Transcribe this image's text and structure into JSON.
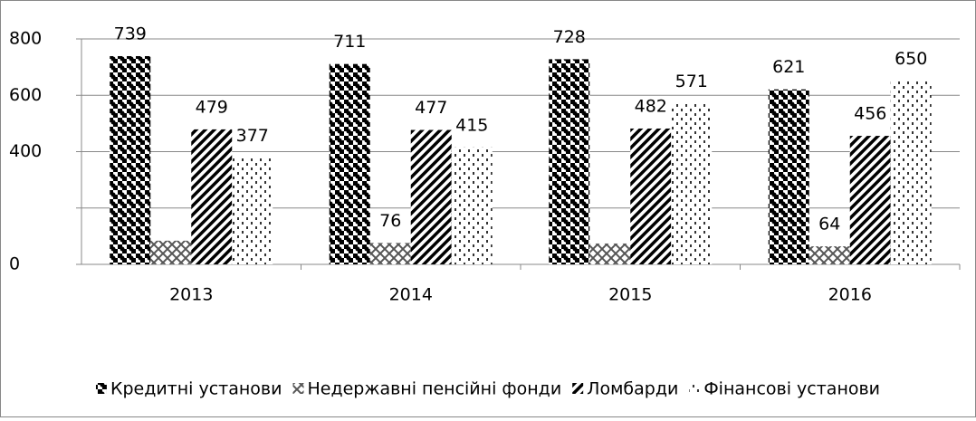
{
  "chart_data": {
    "type": "bar",
    "categories": [
      "2013",
      "2014",
      "2015",
      "2016"
    ],
    "series": [
      {
        "name": "Кредитні установи",
        "color": "#000000",
        "values": [
          739,
          711,
          728,
          621
        ]
      },
      {
        "name": "Недержавні пенсійні фонди",
        "color": "#555555",
        "values": [
          84,
          76,
          74,
          64
        ],
        "value_labels": [
          null,
          "76",
          null,
          "64"
        ]
      },
      {
        "name": "Ломбарди",
        "color": "#000000",
        "values": [
          479,
          477,
          482,
          456
        ]
      },
      {
        "name": "Фінансові установи",
        "color": "#333333",
        "values": [
          377,
          415,
          571,
          650
        ]
      }
    ],
    "ylim": [
      0,
      800
    ],
    "yticks": [
      0,
      {
        "value": 200,
        "label": null
      },
      400,
      600,
      800
    ],
    "grid": true,
    "legend": "bottom"
  }
}
